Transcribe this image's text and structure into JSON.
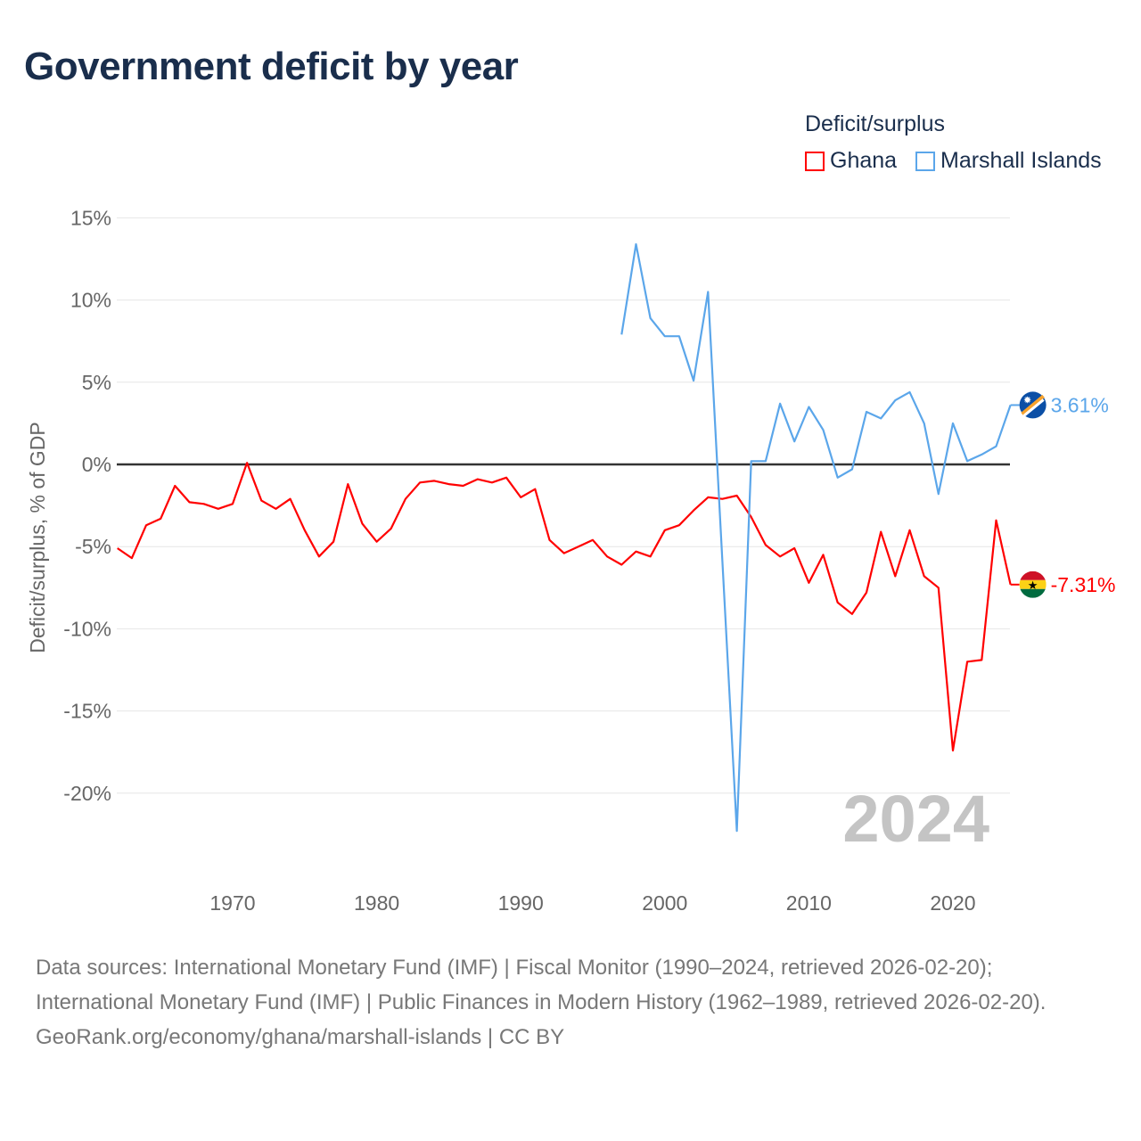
{
  "title": "Government deficit by year",
  "legend": {
    "title": "Deficit/surplus",
    "items": [
      "Ghana",
      "Marshall Islands"
    ]
  },
  "watermark_year": "2024",
  "source_lines": [
    "Data sources: International Monetary Fund (IMF) | Fiscal Monitor (1990–2024, retrieved 2026-02-20); International Monetary Fund (IMF) | Public Finances in Modern History (1962–1989, retrieved 2026-02-20).",
    "GeoRank.org/economy/ghana/marshall-islands | CC BY"
  ],
  "colors": {
    "ghana": "#ff0000",
    "marshall": "#5ba6ea",
    "zero": "#333333",
    "grid": "#e6e6e6"
  },
  "chart_data": {
    "type": "line",
    "title": "Government deficit by year",
    "ylabel": "Deficit/surplus, % of GDP",
    "xlabel": "",
    "xlim": [
      1962,
      2024
    ],
    "ylim": [
      -22.5,
      15
    ],
    "yticks": [
      15,
      10,
      5,
      0,
      -5,
      -10,
      -15,
      -20
    ],
    "ytick_labels": [
      "15%",
      "10%",
      "5%",
      "0%",
      "-5%",
      "-10%",
      "-15%",
      "-20%"
    ],
    "xticks": [
      1970,
      1980,
      1990,
      2000,
      2010,
      2020
    ],
    "xtick_labels": [
      "1970",
      "1980",
      "1990",
      "2000",
      "2010",
      "2020"
    ],
    "grid": true,
    "legend_position": "top-right",
    "series": [
      {
        "name": "Ghana",
        "end_label": "-7.31%",
        "x_start": 1962,
        "values": [
          -5.1,
          -5.7,
          -3.7,
          -3.3,
          -1.3,
          -2.3,
          -2.4,
          -2.7,
          -2.4,
          0.1,
          -2.2,
          -2.7,
          -2.1,
          -4.0,
          -5.6,
          -4.7,
          -1.2,
          -3.6,
          -4.7,
          -3.9,
          -2.1,
          -1.1,
          -1.0,
          -1.2,
          -1.3,
          -0.9,
          -1.1,
          -0.8,
          -2.0,
          -1.5,
          -4.6,
          -5.4,
          -5.0,
          -4.6,
          -5.6,
          -6.1,
          -5.3,
          -5.6,
          -4.0,
          -3.7,
          -2.8,
          -2.0,
          -2.1,
          -1.9,
          -3.2,
          -4.9,
          -5.6,
          -5.1,
          -7.2,
          -5.5,
          -8.4,
          -9.1,
          -7.8,
          -4.1,
          -6.8,
          -4.0,
          -6.8,
          -7.5,
          -17.4,
          -12.0,
          -11.9,
          -3.4,
          -7.31
        ]
      },
      {
        "name": "Marshall Islands",
        "end_label": "3.61%",
        "x_start": 1997,
        "values": [
          7.9,
          13.4,
          8.9,
          7.8,
          7.8,
          5.1,
          10.5,
          -5.9,
          -22.3,
          0.2,
          0.2,
          3.7,
          1.4,
          3.5,
          2.1,
          -0.8,
          -0.3,
          3.2,
          2.8,
          3.9,
          4.4,
          2.5,
          -1.8,
          2.5,
          0.2,
          0.6,
          1.1,
          3.61
        ]
      }
    ]
  }
}
